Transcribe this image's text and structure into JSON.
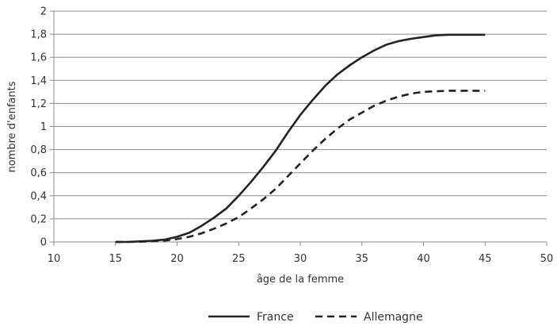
{
  "chart_data": {
    "type": "line",
    "xlabel": "âge de la femme",
    "ylabel": "nombre d'enfants",
    "xlim": [
      10,
      50
    ],
    "ylim": [
      0,
      2
    ],
    "xticks": [
      10,
      15,
      20,
      25,
      30,
      35,
      40,
      45,
      50
    ],
    "xtick_labels": [
      "10",
      "15",
      "20",
      "25",
      "30",
      "35",
      "40",
      "45",
      "50"
    ],
    "yticks": [
      0,
      0.2,
      0.4,
      0.6,
      0.8,
      1,
      1.2,
      1.4,
      1.6,
      1.8,
      2
    ],
    "ytick_labels": [
      "0",
      "0,2",
      "0,4",
      "0,6",
      "0,8",
      "1",
      "1,2",
      "1,4",
      "1,6",
      "1,8",
      "2"
    ],
    "grid": "horizontal",
    "legend_position": "bottom",
    "series": [
      {
        "name": "France",
        "style": "solid",
        "color": "#222222",
        "x": [
          15,
          16,
          17,
          18,
          19,
          20,
          21,
          22,
          23,
          24,
          25,
          26,
          27,
          28,
          29,
          30,
          31,
          32,
          33,
          34,
          35,
          36,
          37,
          38,
          39,
          40,
          41,
          42,
          43,
          44,
          45
        ],
        "y": [
          0.0,
          0.0,
          0.005,
          0.01,
          0.02,
          0.045,
          0.08,
          0.14,
          0.21,
          0.29,
          0.4,
          0.52,
          0.65,
          0.79,
          0.95,
          1.1,
          1.23,
          1.35,
          1.45,
          1.53,
          1.6,
          1.66,
          1.71,
          1.74,
          1.76,
          1.775,
          1.79,
          1.795,
          1.795,
          1.795,
          1.795
        ]
      },
      {
        "name": "Allemagne",
        "style": "dashed",
        "color": "#222222",
        "x": [
          15,
          16,
          17,
          18,
          19,
          20,
          21,
          22,
          23,
          24,
          25,
          26,
          27,
          28,
          29,
          30,
          31,
          32,
          33,
          34,
          35,
          36,
          37,
          38,
          39,
          40,
          41,
          42,
          43,
          44,
          45
        ],
        "y": [
          0.0,
          0.0,
          0.002,
          0.006,
          0.012,
          0.025,
          0.045,
          0.075,
          0.115,
          0.16,
          0.215,
          0.29,
          0.37,
          0.46,
          0.57,
          0.68,
          0.79,
          0.89,
          0.98,
          1.06,
          1.12,
          1.18,
          1.225,
          1.26,
          1.285,
          1.3,
          1.305,
          1.31,
          1.31,
          1.31,
          1.31
        ]
      }
    ]
  }
}
